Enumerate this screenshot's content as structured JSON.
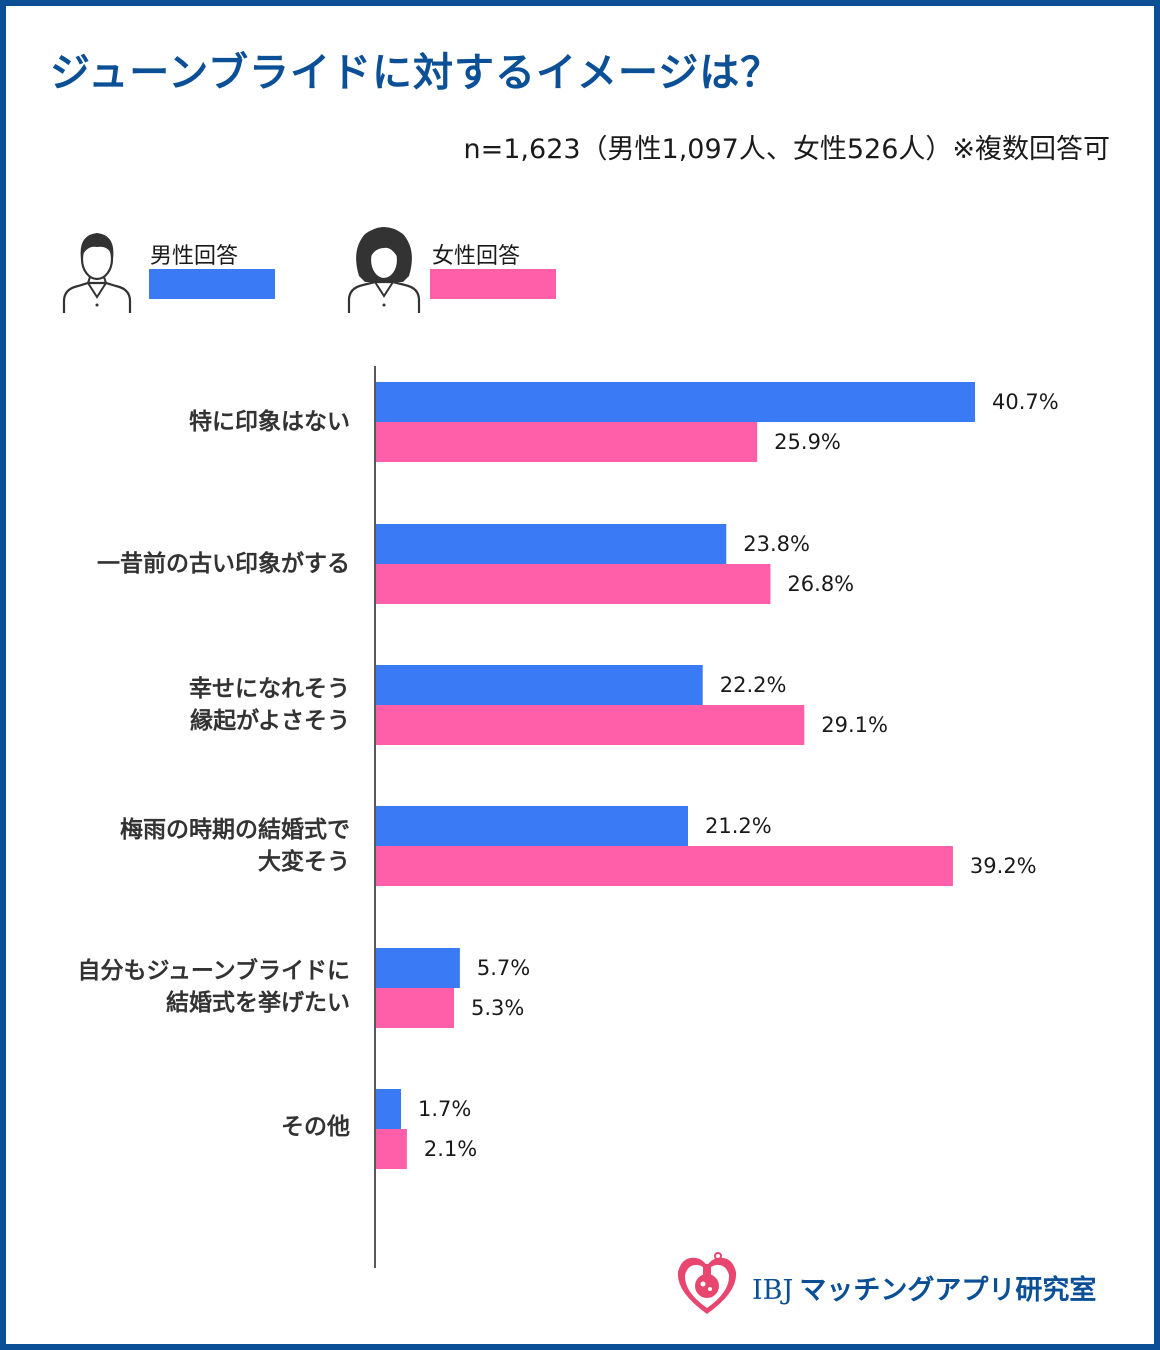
{
  "title": "ジューンブライドに対するイメージは？",
  "subtitle": "n=1,623（男性1,097人、女性526人）※複数回答可",
  "legend": {
    "male": {
      "label": "男性回答",
      "color": "#3a7bf5",
      "icon": "man-avatar-icon"
    },
    "female": {
      "label": "女性回答",
      "color": "#ff5fa8",
      "icon": "woman-avatar-icon"
    }
  },
  "chart_data": {
    "type": "bar",
    "orientation": "horizontal",
    "categories": [
      [
        "特に印象はない"
      ],
      [
        "一昔前の古い印象がする"
      ],
      [
        "幸せになれそう",
        "縁起がよさそう"
      ],
      [
        "梅雨の時期の結婚式で",
        "大変そう"
      ],
      [
        "自分もジューンブライドに",
        "結婚式を挙げたい"
      ],
      [
        "その他"
      ]
    ],
    "series": [
      {
        "name": "男性回答",
        "color": "#3a7bf5",
        "values": [
          40.7,
          23.8,
          22.2,
          21.2,
          5.7,
          1.7
        ]
      },
      {
        "name": "女性回答",
        "color": "#ff5fa8",
        "values": [
          25.9,
          26.8,
          29.1,
          39.2,
          5.3,
          2.1
        ]
      }
    ],
    "value_labels": {
      "male": [
        "40.7%",
        "23.8%",
        "22.2%",
        "21.2%",
        "5.7%",
        "1.7%"
      ],
      "female": [
        "25.9%",
        "26.8%",
        "29.1%",
        "39.2%",
        "5.3%",
        "2.1%"
      ]
    },
    "xlim": [
      0,
      40.7
    ],
    "grid": false,
    "legend_position": "top-left"
  },
  "logo": {
    "brand": "IBJ",
    "name": "マッチングアプリ研究室",
    "icon": "heart-flask-logo-icon"
  }
}
